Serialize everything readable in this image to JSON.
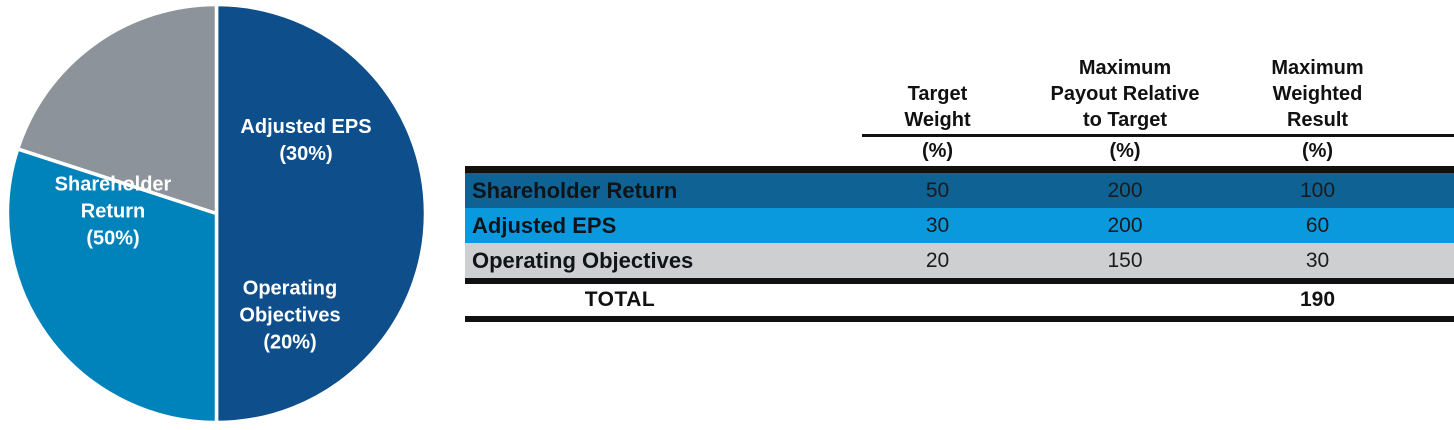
{
  "chart_data": {
    "type": "pie",
    "title": "",
    "legend_position": "none",
    "labels_inside_slices": true,
    "start_angle_deg": 0,
    "direction": "clockwise",
    "stroke_color": "#FFFFFF",
    "slices": [
      {
        "label": "Shareholder Return",
        "pct_label": "(50%)",
        "value": 50,
        "color": "#0D4E8B",
        "text_color": "#FFFFFF"
      },
      {
        "label": "Adjusted EPS",
        "pct_label": "(30%)",
        "value": 30,
        "color": "#0082BA",
        "text_color": "#FFFFFF"
      },
      {
        "label": "Operating Objectives",
        "pct_label": "(20%)",
        "value": 20,
        "color": "#8D939A",
        "text_color": "#FFFFFF"
      }
    ]
  },
  "table": {
    "col_headers": [
      "Target\nWeight",
      "Maximum\nPayout Relative\nto Target",
      "Maximum\nWeighted\nResult"
    ],
    "unit_row": [
      "(%)",
      "(%)",
      "(%)"
    ],
    "rows": [
      {
        "label": "Shareholder Return",
        "target_weight": "50",
        "max_payout": "200",
        "max_weighted": "100",
        "bg": "#0E6394"
      },
      {
        "label": "Adjusted EPS",
        "target_weight": "30",
        "max_payout": "200",
        "max_weighted": "60",
        "bg": "#0A99DC"
      },
      {
        "label": "Operating Objectives",
        "target_weight": "20",
        "max_payout": "150",
        "max_weighted": "30",
        "bg": "#CECFD1"
      }
    ],
    "total_row": {
      "label": "TOTAL",
      "target_weight": "",
      "max_payout": "",
      "max_weighted": "190"
    },
    "line_color": "#111111"
  }
}
